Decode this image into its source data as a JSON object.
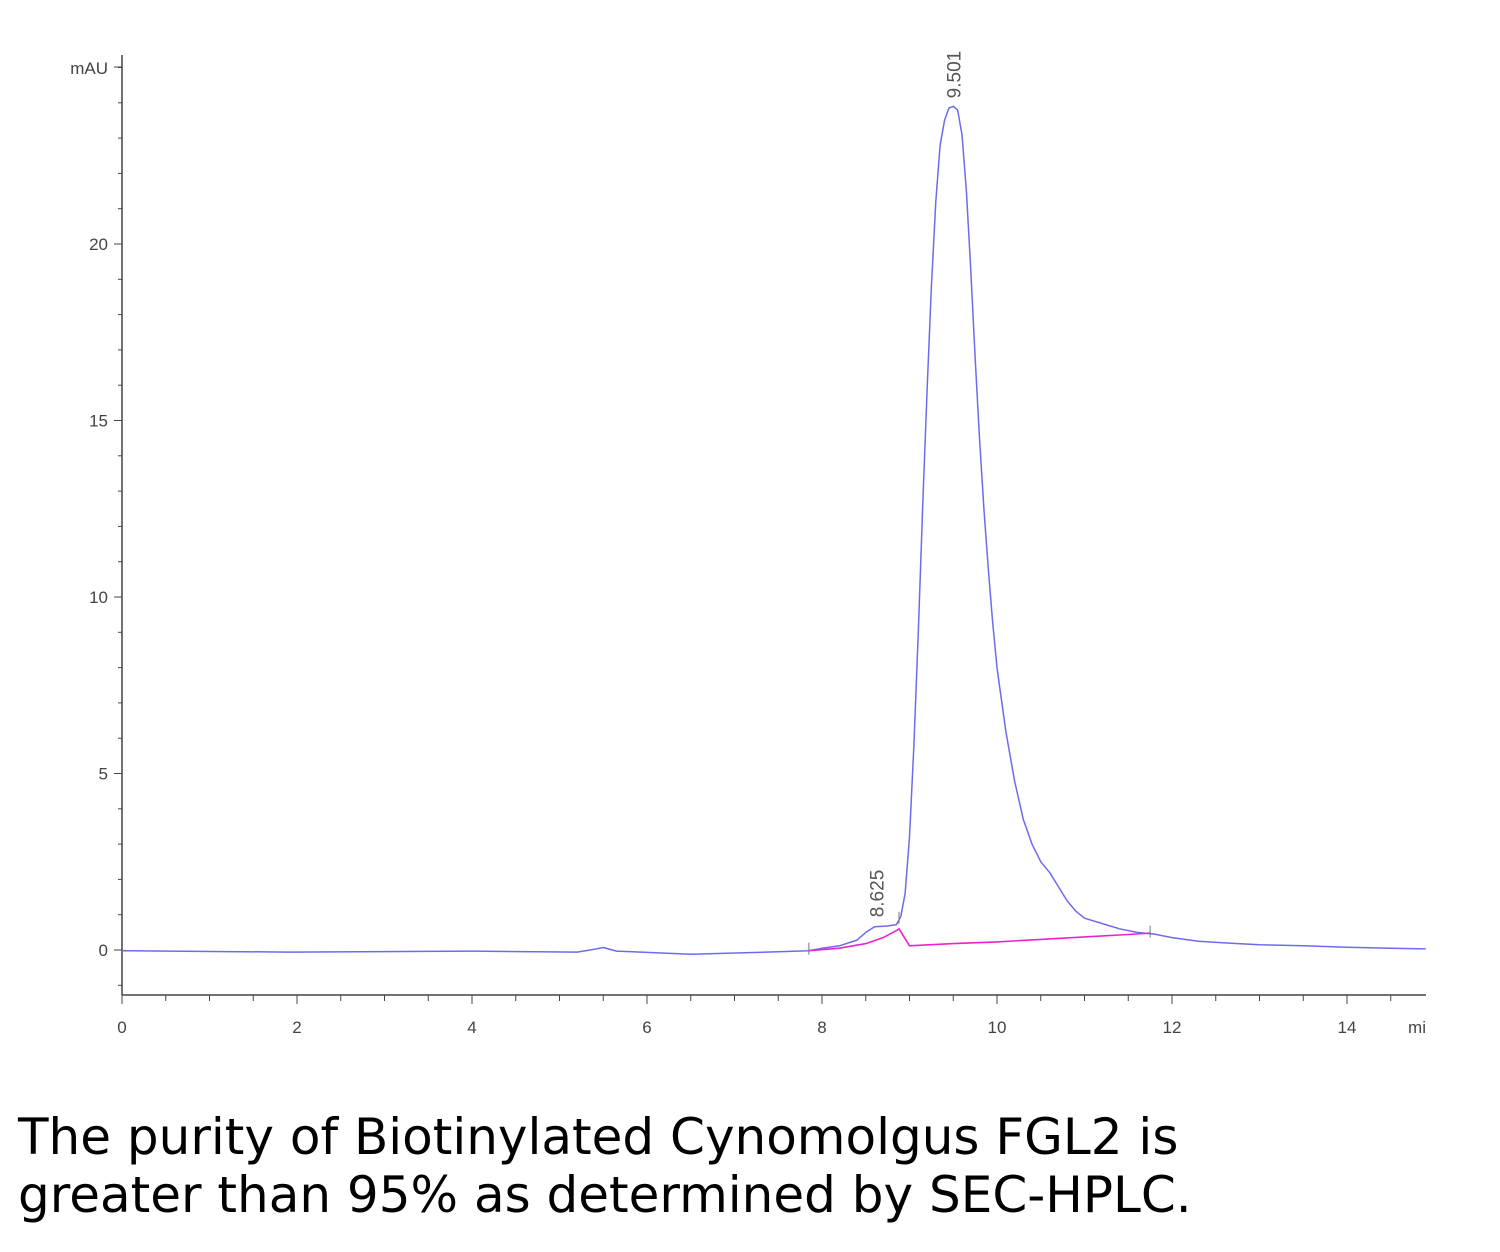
{
  "chart_data": {
    "type": "line",
    "y_unit": "mAU",
    "x_unit": "mi",
    "xlim": [
      0,
      14.9
    ],
    "ylim": [
      -1.3,
      25
    ],
    "x_ticks": [
      0,
      2,
      4,
      6,
      8,
      10,
      12,
      14
    ],
    "y_ticks": [
      0,
      5,
      10,
      15,
      20
    ],
    "grid": false,
    "colors": {
      "signal": "#6b6bf0",
      "baseline": "#ee22cc",
      "axis": "#444444"
    },
    "peak_labels": [
      {
        "x": 9.501,
        "y": 23.9,
        "text": "9.501"
      },
      {
        "x": 8.625,
        "y": 0.7,
        "text": "8.625"
      }
    ],
    "integration_markers": [
      7.85,
      8.88,
      11.75
    ],
    "series": [
      {
        "role": "signal",
        "points": [
          [
            0,
            -0.02
          ],
          [
            1.9,
            -0.06
          ],
          [
            4.0,
            -0.03
          ],
          [
            5.2,
            -0.06
          ],
          [
            5.4,
            0.02
          ],
          [
            5.5,
            0.07
          ],
          [
            5.65,
            -0.03
          ],
          [
            6.5,
            -0.12
          ],
          [
            7.5,
            -0.05
          ],
          [
            7.85,
            -0.02
          ],
          [
            8.0,
            0.05
          ],
          [
            8.2,
            0.12
          ],
          [
            8.4,
            0.28
          ],
          [
            8.5,
            0.5
          ],
          [
            8.6,
            0.66
          ],
          [
            8.75,
            0.68
          ],
          [
            8.85,
            0.72
          ],
          [
            8.9,
            0.95
          ],
          [
            8.95,
            1.6
          ],
          [
            9.0,
            3.2
          ],
          [
            9.05,
            5.8
          ],
          [
            9.1,
            9.0
          ],
          [
            9.15,
            12.5
          ],
          [
            9.2,
            15.8
          ],
          [
            9.25,
            18.8
          ],
          [
            9.3,
            21.2
          ],
          [
            9.35,
            22.8
          ],
          [
            9.4,
            23.5
          ],
          [
            9.45,
            23.85
          ],
          [
            9.501,
            23.9
          ],
          [
            9.55,
            23.8
          ],
          [
            9.6,
            23.1
          ],
          [
            9.65,
            21.5
          ],
          [
            9.7,
            19.3
          ],
          [
            9.75,
            16.8
          ],
          [
            9.8,
            14.5
          ],
          [
            9.85,
            12.5
          ],
          [
            9.9,
            10.8
          ],
          [
            9.95,
            9.3
          ],
          [
            10.0,
            8.0
          ],
          [
            10.1,
            6.2
          ],
          [
            10.2,
            4.8
          ],
          [
            10.3,
            3.7
          ],
          [
            10.4,
            3.0
          ],
          [
            10.5,
            2.5
          ],
          [
            10.6,
            2.2
          ],
          [
            10.7,
            1.8
          ],
          [
            10.8,
            1.4
          ],
          [
            10.9,
            1.1
          ],
          [
            11.0,
            0.9
          ],
          [
            11.2,
            0.75
          ],
          [
            11.4,
            0.6
          ],
          [
            11.6,
            0.5
          ],
          [
            11.8,
            0.45
          ],
          [
            12.0,
            0.35
          ],
          [
            12.3,
            0.25
          ],
          [
            12.6,
            0.2
          ],
          [
            13.0,
            0.15
          ],
          [
            13.5,
            0.12
          ],
          [
            14.0,
            0.08
          ],
          [
            14.5,
            0.05
          ],
          [
            14.9,
            0.03
          ]
        ]
      },
      {
        "role": "baseline",
        "points": [
          [
            7.85,
            -0.02
          ],
          [
            8.2,
            0.05
          ],
          [
            8.5,
            0.18
          ],
          [
            8.7,
            0.35
          ],
          [
            8.85,
            0.55
          ],
          [
            8.88,
            0.6
          ],
          [
            9.0,
            0.12
          ],
          [
            9.5,
            0.18
          ],
          [
            10.0,
            0.23
          ],
          [
            10.5,
            0.3
          ],
          [
            11.0,
            0.37
          ],
          [
            11.5,
            0.44
          ],
          [
            11.75,
            0.48
          ]
        ]
      }
    ]
  },
  "caption": {
    "line1": "The purity of Biotinylated Cynomolgus FGL2 is",
    "line2": "greater than 95% as determined by SEC-HPLC."
  }
}
